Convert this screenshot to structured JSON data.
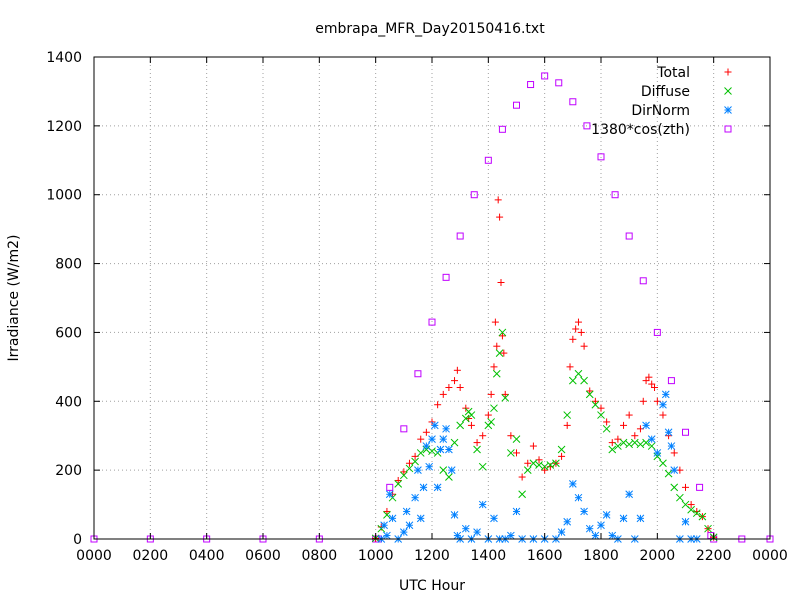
{
  "chart_data": {
    "type": "scatter",
    "title": "embrapa_MFR_Day20150416.txt",
    "xlabel": "UTC Hour",
    "ylabel": "Irradiance (W/m2)",
    "xlim": [
      0,
      2400
    ],
    "ylim": [
      0,
      1400
    ],
    "xticks": [
      "0000",
      "0200",
      "0400",
      "0600",
      "0800",
      "1000",
      "1200",
      "1400",
      "1600",
      "1800",
      "2000",
      "2200",
      "0000"
    ],
    "yticks": [
      "0",
      "200",
      "400",
      "600",
      "800",
      "1000",
      "1200",
      "1400"
    ],
    "grid": true,
    "legend_position": "top-right",
    "series": [
      {
        "name": "Total",
        "marker": "+",
        "color": "#ff0000",
        "points": [
          [
            1000,
            2
          ],
          [
            1020,
            35
          ],
          [
            1040,
            80
          ],
          [
            1060,
            130
          ],
          [
            1080,
            170
          ],
          [
            1100,
            195
          ],
          [
            1120,
            220
          ],
          [
            1140,
            240
          ],
          [
            1160,
            290
          ],
          [
            1180,
            310
          ],
          [
            1200,
            340
          ],
          [
            1220,
            390
          ],
          [
            1240,
            420
          ],
          [
            1260,
            440
          ],
          [
            1280,
            460
          ],
          [
            1290,
            490
          ],
          [
            1300,
            440
          ],
          [
            1320,
            380
          ],
          [
            1330,
            350
          ],
          [
            1340,
            330
          ],
          [
            1360,
            280
          ],
          [
            1380,
            300
          ],
          [
            1400,
            360
          ],
          [
            1410,
            420
          ],
          [
            1420,
            500
          ],
          [
            1425,
            630
          ],
          [
            1430,
            560
          ],
          [
            1435,
            985
          ],
          [
            1440,
            935
          ],
          [
            1445,
            745
          ],
          [
            1450,
            590
          ],
          [
            1455,
            540
          ],
          [
            1460,
            420
          ],
          [
            1480,
            300
          ],
          [
            1500,
            250
          ],
          [
            1520,
            180
          ],
          [
            1540,
            220
          ],
          [
            1560,
            270
          ],
          [
            1580,
            230
          ],
          [
            1600,
            200
          ],
          [
            1620,
            210
          ],
          [
            1640,
            220
          ],
          [
            1660,
            240
          ],
          [
            1680,
            330
          ],
          [
            1690,
            500
          ],
          [
            1700,
            580
          ],
          [
            1710,
            610
          ],
          [
            1720,
            630
          ],
          [
            1730,
            600
          ],
          [
            1740,
            560
          ],
          [
            1760,
            430
          ],
          [
            1780,
            400
          ],
          [
            1800,
            380
          ],
          [
            1820,
            340
          ],
          [
            1840,
            280
          ],
          [
            1860,
            290
          ],
          [
            1880,
            330
          ],
          [
            1900,
            360
          ],
          [
            1920,
            300
          ],
          [
            1940,
            320
          ],
          [
            1950,
            400
          ],
          [
            1960,
            460
          ],
          [
            1970,
            470
          ],
          [
            1980,
            450
          ],
          [
            1990,
            440
          ],
          [
            2000,
            400
          ],
          [
            2020,
            360
          ],
          [
            2040,
            300
          ],
          [
            2060,
            250
          ],
          [
            2080,
            200
          ],
          [
            2100,
            150
          ],
          [
            2120,
            100
          ],
          [
            2140,
            80
          ],
          [
            2160,
            65
          ],
          [
            2180,
            30
          ],
          [
            2200,
            5
          ]
        ]
      },
      {
        "name": "Diffuse",
        "marker": "x",
        "color": "#00c000",
        "points": [
          [
            1000,
            2
          ],
          [
            1020,
            30
          ],
          [
            1040,
            70
          ],
          [
            1060,
            120
          ],
          [
            1080,
            160
          ],
          [
            1100,
            185
          ],
          [
            1120,
            205
          ],
          [
            1140,
            225
          ],
          [
            1160,
            250
          ],
          [
            1180,
            260
          ],
          [
            1200,
            255
          ],
          [
            1220,
            250
          ],
          [
            1240,
            200
          ],
          [
            1260,
            180
          ],
          [
            1280,
            280
          ],
          [
            1300,
            330
          ],
          [
            1320,
            350
          ],
          [
            1330,
            370
          ],
          [
            1340,
            360
          ],
          [
            1360,
            260
          ],
          [
            1380,
            210
          ],
          [
            1400,
            330
          ],
          [
            1410,
            340
          ],
          [
            1420,
            380
          ],
          [
            1430,
            480
          ],
          [
            1440,
            540
          ],
          [
            1450,
            600
          ],
          [
            1460,
            410
          ],
          [
            1480,
            250
          ],
          [
            1500,
            290
          ],
          [
            1520,
            130
          ],
          [
            1540,
            200
          ],
          [
            1560,
            220
          ],
          [
            1580,
            215
          ],
          [
            1600,
            210
          ],
          [
            1620,
            215
          ],
          [
            1640,
            220
          ],
          [
            1660,
            260
          ],
          [
            1680,
            360
          ],
          [
            1700,
            460
          ],
          [
            1720,
            480
          ],
          [
            1740,
            460
          ],
          [
            1760,
            420
          ],
          [
            1780,
            390
          ],
          [
            1800,
            360
          ],
          [
            1820,
            320
          ],
          [
            1840,
            260
          ],
          [
            1860,
            270
          ],
          [
            1880,
            280
          ],
          [
            1900,
            275
          ],
          [
            1920,
            280
          ],
          [
            1940,
            275
          ],
          [
            1960,
            280
          ],
          [
            1980,
            270
          ],
          [
            2000,
            240
          ],
          [
            2020,
            220
          ],
          [
            2040,
            190
          ],
          [
            2060,
            150
          ],
          [
            2080,
            120
          ],
          [
            2100,
            100
          ],
          [
            2120,
            85
          ],
          [
            2140,
            75
          ],
          [
            2160,
            65
          ],
          [
            2180,
            30
          ],
          [
            2200,
            5
          ]
        ]
      },
      {
        "name": "DirNorm",
        "marker": "*",
        "color": "#0080ff",
        "points": [
          [
            1020,
            0
          ],
          [
            1030,
            40
          ],
          [
            1040,
            10
          ],
          [
            1050,
            130
          ],
          [
            1060,
            60
          ],
          [
            1080,
            0
          ],
          [
            1100,
            20
          ],
          [
            1110,
            80
          ],
          [
            1120,
            40
          ],
          [
            1140,
            120
          ],
          [
            1150,
            200
          ],
          [
            1160,
            60
          ],
          [
            1170,
            150
          ],
          [
            1180,
            270
          ],
          [
            1190,
            210
          ],
          [
            1200,
            290
          ],
          [
            1210,
            330
          ],
          [
            1220,
            150
          ],
          [
            1230,
            260
          ],
          [
            1240,
            290
          ],
          [
            1250,
            320
          ],
          [
            1260,
            260
          ],
          [
            1270,
            200
          ],
          [
            1280,
            70
          ],
          [
            1290,
            10
          ],
          [
            1300,
            0
          ],
          [
            1320,
            30
          ],
          [
            1340,
            0
          ],
          [
            1360,
            20
          ],
          [
            1380,
            100
          ],
          [
            1400,
            0
          ],
          [
            1420,
            60
          ],
          [
            1440,
            0
          ],
          [
            1460,
            0
          ],
          [
            1480,
            10
          ],
          [
            1500,
            80
          ],
          [
            1520,
            0
          ],
          [
            1560,
            0
          ],
          [
            1600,
            0
          ],
          [
            1640,
            0
          ],
          [
            1660,
            20
          ],
          [
            1680,
            50
          ],
          [
            1700,
            160
          ],
          [
            1720,
            120
          ],
          [
            1740,
            80
          ],
          [
            1760,
            30
          ],
          [
            1780,
            10
          ],
          [
            1800,
            40
          ],
          [
            1820,
            70
          ],
          [
            1840,
            10
          ],
          [
            1860,
            0
          ],
          [
            1880,
            60
          ],
          [
            1900,
            130
          ],
          [
            1920,
            0
          ],
          [
            1940,
            60
          ],
          [
            1960,
            330
          ],
          [
            1980,
            290
          ],
          [
            2000,
            250
          ],
          [
            2020,
            390
          ],
          [
            2030,
            420
          ],
          [
            2040,
            310
          ],
          [
            2050,
            270
          ],
          [
            2060,
            200
          ],
          [
            2080,
            0
          ],
          [
            2100,
            50
          ],
          [
            2120,
            0
          ],
          [
            2140,
            0
          ]
        ]
      },
      {
        "name": "1380*cos(zth)",
        "marker": "square",
        "color": "#c000ff",
        "points": [
          [
            0,
            0
          ],
          [
            200,
            0
          ],
          [
            400,
            0
          ],
          [
            600,
            0
          ],
          [
            800,
            0
          ],
          [
            1000,
            0
          ],
          [
            1010,
            0
          ],
          [
            1050,
            150
          ],
          [
            1100,
            320
          ],
          [
            1150,
            480
          ],
          [
            1200,
            630
          ],
          [
            1250,
            760
          ],
          [
            1300,
            880
          ],
          [
            1350,
            1000
          ],
          [
            1400,
            1100
          ],
          [
            1450,
            1190
          ],
          [
            1500,
            1260
          ],
          [
            1550,
            1320
          ],
          [
            1600,
            1345
          ],
          [
            1650,
            1325
          ],
          [
            1700,
            1270
          ],
          [
            1750,
            1200
          ],
          [
            1800,
            1110
          ],
          [
            1850,
            1000
          ],
          [
            1900,
            880
          ],
          [
            1950,
            750
          ],
          [
            2000,
            600
          ],
          [
            2050,
            460
          ],
          [
            2100,
            310
          ],
          [
            2150,
            150
          ],
          [
            2190,
            10
          ],
          [
            2200,
            0
          ],
          [
            2300,
            0
          ],
          [
            2400,
            0
          ]
        ]
      }
    ]
  }
}
